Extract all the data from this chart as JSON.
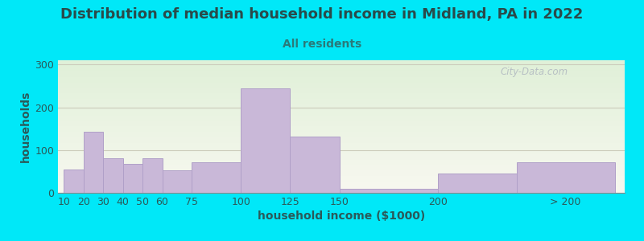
{
  "title": "Distribution of median household income in Midland, PA in 2022",
  "subtitle": "All residents",
  "xlabel": "household income ($1000)",
  "ylabel": "households",
  "bar_color": "#c9b8d8",
  "bar_edge_color": "#b0a0c8",
  "background_top": "#e0f0d8",
  "background_bottom": "#f8f8f0",
  "fig_bg": "#00e8f8",
  "title_color": "#2a4a4a",
  "subtitle_color": "#2a7a7a",
  "axis_label_color": "#2a5a5a",
  "tick_color": "#2a5a5a",
  "categories": [
    "10",
    "20",
    "30",
    "40",
    "50",
    "60",
    "75",
    "100",
    "125",
    "150",
    "200",
    "> 200"
  ],
  "values": [
    55,
    142,
    80,
    68,
    80,
    52,
    72,
    245,
    132,
    10,
    45,
    72
  ],
  "ylim": [
    0,
    310
  ],
  "yticks": [
    0,
    100,
    200,
    300
  ],
  "grid_color": "#ccccbb",
  "title_fontsize": 13,
  "subtitle_fontsize": 10,
  "axis_label_fontsize": 10,
  "tick_fontsize": 9,
  "left_edges": [
    10,
    20,
    30,
    40,
    50,
    60,
    75,
    100,
    125,
    150,
    200,
    240
  ],
  "widths": [
    10,
    10,
    10,
    10,
    10,
    15,
    25,
    25,
    25,
    50,
    40,
    50
  ],
  "xlim_left": 7,
  "xlim_right": 295,
  "xtick_pos": [
    10,
    20,
    30,
    40,
    50,
    60,
    75,
    100,
    125,
    150,
    200,
    265
  ],
  "watermark": "City-Data.com"
}
